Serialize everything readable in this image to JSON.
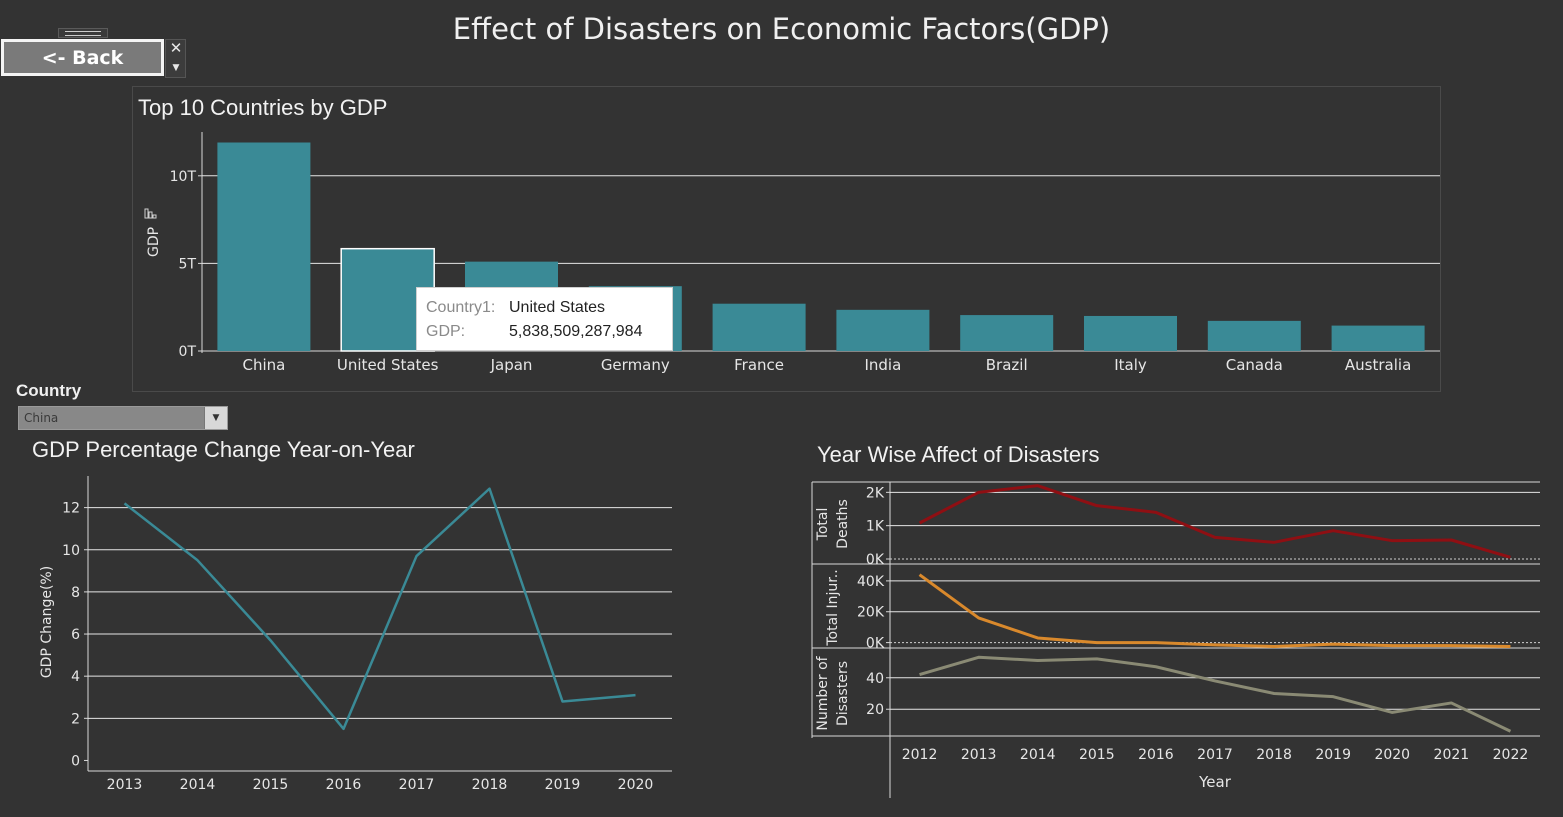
{
  "page": {
    "title": "Effect of Disasters on Economic Factors(GDP)"
  },
  "back_button": {
    "label": "<- Back",
    "close_glyph": "✕",
    "more_glyph": "▼"
  },
  "filter": {
    "label": "Country",
    "value": "China",
    "arrow_glyph": "▼"
  },
  "tooltip": {
    "k1": "Country1:",
    "v1": "United States",
    "k2": "GDP:",
    "v2": "5,838,509,287,984"
  },
  "colors": {
    "background": "#333333",
    "bar": "#3a8a96",
    "line_gdp": "#3a8a96",
    "deaths": "#8f0f13",
    "injuries": "#d9892c",
    "disasters": "#8a8a74",
    "grid": "#e6e6e6",
    "text": "#e6e6e6"
  },
  "chart_data": [
    {
      "type": "bar",
      "title": "Top 10 Countries by GDP",
      "ylabel": "GDP",
      "categories": [
        "China",
        "United States",
        "Japan",
        "Germany",
        "France",
        "India",
        "Brazil",
        "Italy",
        "Canada",
        "Australia"
      ],
      "values": [
        11.9,
        5.84,
        5.1,
        3.7,
        2.7,
        2.35,
        2.05,
        2.0,
        1.72,
        1.45
      ],
      "value_unit": "T",
      "ylim": [
        0,
        12.5
      ],
      "yticks": [
        "0T",
        "5T",
        "10T"
      ],
      "ytick_values": [
        0,
        5,
        10
      ],
      "highlighted": "United States",
      "grid": true
    },
    {
      "type": "line",
      "title": "GDP Percentage Change Year-on-Year",
      "ylabel": "GDP Change(%)",
      "x": [
        "2013",
        "2014",
        "2015",
        "2016",
        "2017",
        "2018",
        "2019",
        "2020"
      ],
      "values": [
        12.2,
        9.5,
        5.7,
        1.5,
        9.7,
        12.9,
        2.8,
        3.1
      ],
      "ylim": [
        -0.5,
        13.5
      ],
      "yticks": [
        "0",
        "2",
        "4",
        "6",
        "8",
        "10",
        "12"
      ],
      "ytick_values": [
        0,
        2,
        4,
        6,
        8,
        10,
        12
      ],
      "grid": true
    },
    {
      "type": "line",
      "title": "Year Wise Affect of Disasters",
      "xlabel": "Year",
      "x": [
        "2012",
        "2013",
        "2014",
        "2015",
        "2016",
        "2017",
        "2018",
        "2019",
        "2020",
        "2021",
        "2022"
      ],
      "panels": [
        {
          "ylabel": [
            "Total",
            "Deaths"
          ],
          "values": [
            1080,
            2000,
            2200,
            1600,
            1400,
            650,
            500,
            850,
            550,
            570,
            50
          ],
          "ylim": [
            -150,
            2250
          ],
          "yticks": [
            "0K",
            "1K",
            "2K"
          ],
          "ytick_values": [
            0,
            1000,
            2000
          ]
        },
        {
          "ylabel": [
            "Total Injur.."
          ],
          "values": [
            44000,
            16000,
            3000,
            0,
            0,
            -1500,
            -2500,
            -1000,
            -2000,
            -2000,
            -2500
          ],
          "ylim": [
            -3500,
            49000
          ],
          "yticks": [
            "0K",
            "20K",
            "40K"
          ],
          "ytick_values": [
            0,
            20000,
            40000
          ]
        },
        {
          "ylabel": [
            "Number of",
            "Disasters"
          ],
          "values": [
            42,
            53,
            51,
            52,
            47,
            38,
            30,
            28,
            18,
            24,
            6
          ],
          "ylim": [
            3,
            57
          ],
          "yticks": [
            "20",
            "40"
          ],
          "ytick_values": [
            20,
            40
          ]
        }
      ]
    }
  ]
}
